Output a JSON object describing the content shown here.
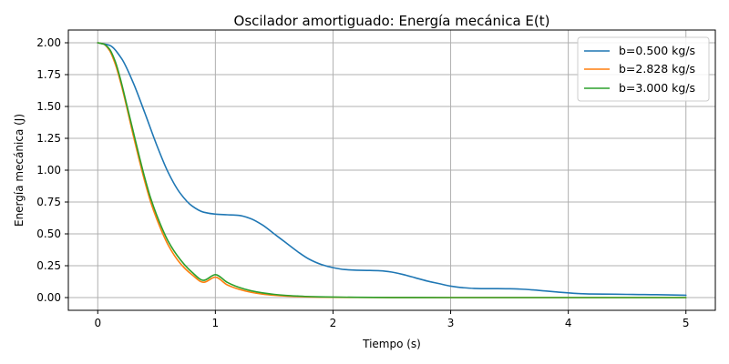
{
  "chart_data": {
    "type": "line",
    "title": "Oscilador amortiguado: Energía mecánica E(t)",
    "xlabel": "Tiempo (s)",
    "ylabel": "Energía mecánica (J)",
    "xlim": [
      -0.25,
      5.25
    ],
    "ylim": [
      -0.1,
      2.1
    ],
    "xticks": [
      0,
      1,
      2,
      3,
      4,
      5
    ],
    "xtick_labels": [
      "0",
      "1",
      "2",
      "3",
      "4",
      "5"
    ],
    "yticks": [
      0.0,
      0.25,
      0.5,
      0.75,
      1.0,
      1.25,
      1.5,
      1.75,
      2.0
    ],
    "ytick_labels": [
      "0.00",
      "0.25",
      "0.50",
      "0.75",
      "1.00",
      "1.25",
      "1.50",
      "1.75",
      "2.00"
    ],
    "grid": true,
    "legend_position": "upper right",
    "series": [
      {
        "name": "b=0.500 kg/s",
        "color": "#1f77b4",
        "x": [
          0,
          0.1,
          0.2,
          0.3,
          0.4,
          0.5,
          0.6,
          0.7,
          0.8,
          0.9,
          1.0,
          1.1,
          1.2,
          1.3,
          1.4,
          1.5,
          1.6,
          1.7,
          1.8,
          1.9,
          2.0,
          2.1,
          2.2,
          2.3,
          2.4,
          2.5,
          2.6,
          2.7,
          2.8,
          2.9,
          3.0,
          3.1,
          3.2,
          3.3,
          3.4,
          3.5,
          3.6,
          3.7,
          3.8,
          3.9,
          4.0,
          4.1,
          4.2,
          4.3,
          4.4,
          4.5,
          4.6,
          4.7,
          4.8,
          4.9,
          5.0
        ],
        "y": [
          2.0,
          1.98,
          1.88,
          1.69,
          1.45,
          1.2,
          0.98,
          0.82,
          0.72,
          0.67,
          0.655,
          0.65,
          0.645,
          0.62,
          0.57,
          0.5,
          0.43,
          0.36,
          0.3,
          0.26,
          0.235,
          0.22,
          0.215,
          0.213,
          0.21,
          0.2,
          0.18,
          0.155,
          0.13,
          0.11,
          0.09,
          0.078,
          0.072,
          0.07,
          0.07,
          0.069,
          0.066,
          0.06,
          0.052,
          0.044,
          0.037,
          0.031,
          0.028,
          0.027,
          0.026,
          0.025,
          0.024,
          0.023,
          0.022,
          0.02,
          0.018
        ]
      },
      {
        "name": "b=2.828 kg/s",
        "color": "#ff7f0e",
        "x": [
          0,
          0.05,
          0.1,
          0.15,
          0.2,
          0.25,
          0.3,
          0.35,
          0.4,
          0.45,
          0.5,
          0.6,
          0.7,
          0.8,
          0.9,
          1.0,
          1.1,
          1.2,
          1.3,
          1.4,
          1.5,
          1.6,
          1.7,
          1.8,
          2.0,
          2.2,
          2.5,
          3.0,
          3.5,
          4.0,
          4.5,
          5.0
        ],
        "y": [
          2.0,
          1.99,
          1.94,
          1.83,
          1.67,
          1.48,
          1.28,
          1.09,
          0.91,
          0.75,
          0.62,
          0.41,
          0.27,
          0.18,
          0.12,
          0.16,
          0.1,
          0.065,
          0.042,
          0.027,
          0.018,
          0.012,
          0.008,
          0.005,
          0.002,
          0.001,
          0.0003,
          0.0,
          0.0,
          0.0,
          0.0,
          0.0
        ]
      },
      {
        "name": "b=3.000 kg/s",
        "color": "#2ca02c",
        "x": [
          0,
          0.05,
          0.1,
          0.15,
          0.2,
          0.25,
          0.3,
          0.35,
          0.4,
          0.45,
          0.5,
          0.6,
          0.7,
          0.8,
          0.9,
          1.0,
          1.1,
          1.2,
          1.3,
          1.4,
          1.5,
          1.6,
          1.7,
          1.8,
          2.0,
          2.2,
          2.5,
          3.0,
          3.5,
          4.0,
          4.5,
          5.0
        ],
        "y": [
          2.0,
          1.99,
          1.95,
          1.85,
          1.69,
          1.5,
          1.31,
          1.12,
          0.94,
          0.78,
          0.65,
          0.44,
          0.3,
          0.2,
          0.135,
          0.18,
          0.12,
          0.08,
          0.054,
          0.037,
          0.025,
          0.017,
          0.012,
          0.008,
          0.004,
          0.002,
          0.0007,
          0.0001,
          0.0,
          0.0,
          0.0,
          0.0
        ]
      }
    ]
  }
}
